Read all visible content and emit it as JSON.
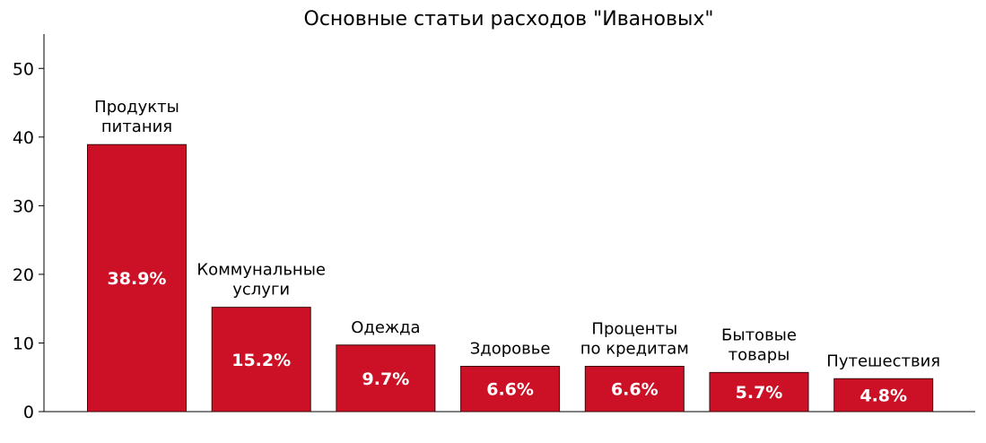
{
  "chart_data": {
    "type": "bar",
    "title": "Основные статьи расходов \"Ивановых\"",
    "xlabel": "",
    "ylabel": "",
    "ylim": [
      0,
      55
    ],
    "yticks": [
      0,
      10,
      20,
      30,
      40,
      50
    ],
    "grid": false,
    "bar_color": "#cc1126",
    "categories": [
      [
        "Продукты",
        "питания"
      ],
      [
        "Коммунальные",
        "услуги"
      ],
      [
        "Одежда"
      ],
      [
        "Здоровье"
      ],
      [
        "Проценты",
        "по кредитам"
      ],
      [
        "Бытовые",
        "товары"
      ],
      [
        "Путешествия"
      ]
    ],
    "values": [
      38.9,
      15.2,
      9.7,
      6.6,
      6.6,
      5.7,
      4.8
    ],
    "value_labels": [
      "38.9%",
      "15.2%",
      "9.7%",
      "6.6%",
      "6.6%",
      "5.7%",
      "4.8%"
    ]
  }
}
